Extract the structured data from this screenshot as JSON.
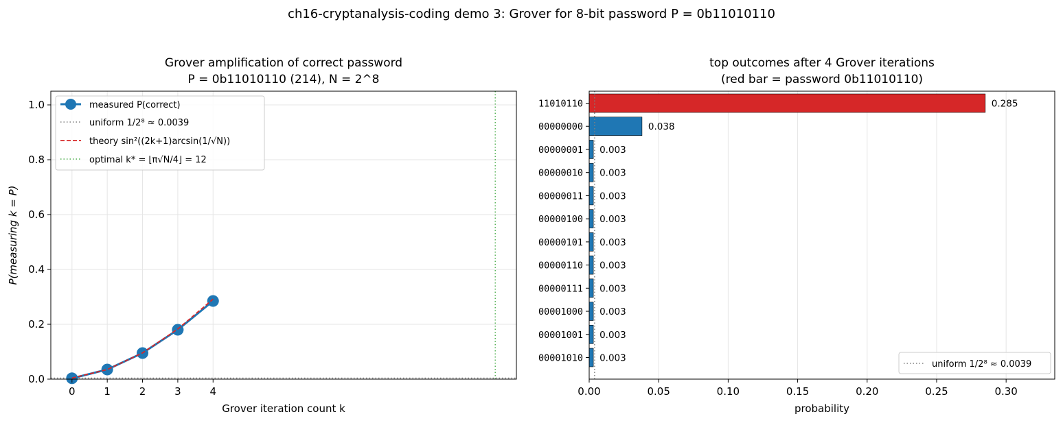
{
  "suptitle": "ch16-cryptanalysis-coding demo 3: Grover for 8-bit password P = 0b11010110",
  "chart_data": [
    {
      "type": "line",
      "title": "Grover amplification of correct password",
      "subtitle": "P = 0b11010110 (214), N = 2^8",
      "xlabel": "Grover iteration count k",
      "ylabel": "P(measuring k = P)",
      "xlim": [
        -0.6,
        12.6
      ],
      "ylim": [
        0,
        1.05
      ],
      "xticks": [
        "0",
        "1",
        "2",
        "3",
        "4"
      ],
      "yticks": [
        "0.0",
        "0.2",
        "0.4",
        "0.6",
        "0.8",
        "1.0"
      ],
      "grid": true,
      "legend_position": "top-left",
      "series": [
        {
          "name": "measured P(correct)",
          "style": "line-markers",
          "color": "#1f77b4",
          "x": [
            0,
            1,
            2,
            3,
            4
          ],
          "y": [
            0.003,
            0.035,
            0.095,
            0.18,
            0.285
          ]
        },
        {
          "name": "theory sin²((2k+1)arcsin(1/√N))",
          "style": "dashed",
          "color": "#d62728",
          "x": [
            0,
            1,
            2,
            3,
            4
          ],
          "y": [
            0.0039,
            0.0349,
            0.0955,
            0.1826,
            0.2916
          ]
        }
      ],
      "hlines": [
        {
          "name": "uniform 1/2⁸ ≈ 0.0039",
          "y": 0.0039,
          "style": "dotted",
          "color": "#808080"
        }
      ],
      "vlines": [
        {
          "name": "optimal k* = ⌊π√N/4⌋ = 12",
          "x": 12,
          "style": "dotted",
          "color": "#2ca02c"
        }
      ]
    },
    {
      "type": "bar",
      "orientation": "horizontal",
      "title": "top outcomes after 4 Grover iterations",
      "subtitle": "(red bar = password 0b11010110)",
      "xlabel": "probability",
      "ylabel": "",
      "xlim": [
        0,
        0.335
      ],
      "xticks": [
        "0.00",
        "0.05",
        "0.10",
        "0.15",
        "0.20",
        "0.25",
        "0.30"
      ],
      "grid": true,
      "legend_position": "bottom-right",
      "categories": [
        "11010110",
        "00000000",
        "00000001",
        "00000010",
        "00000011",
        "00000100",
        "00000101",
        "00000110",
        "00000111",
        "00001000",
        "00001001",
        "00001010"
      ],
      "values": [
        0.285,
        0.038,
        0.003,
        0.003,
        0.003,
        0.003,
        0.003,
        0.003,
        0.003,
        0.003,
        0.003,
        0.003
      ],
      "labels": [
        "0.285",
        "0.038",
        "0.003",
        "0.003",
        "0.003",
        "0.003",
        "0.003",
        "0.003",
        "0.003",
        "0.003",
        "0.003",
        "0.003"
      ],
      "colors": [
        "#d62728",
        "#1f77b4",
        "#1f77b4",
        "#1f77b4",
        "#1f77b4",
        "#1f77b4",
        "#1f77b4",
        "#1f77b4",
        "#1f77b4",
        "#1f77b4",
        "#1f77b4",
        "#1f77b4"
      ],
      "vlines": [
        {
          "name": "uniform 1/2⁸ ≈ 0.0039",
          "x": 0.0039,
          "style": "dotted",
          "color": "#808080"
        }
      ]
    }
  ]
}
